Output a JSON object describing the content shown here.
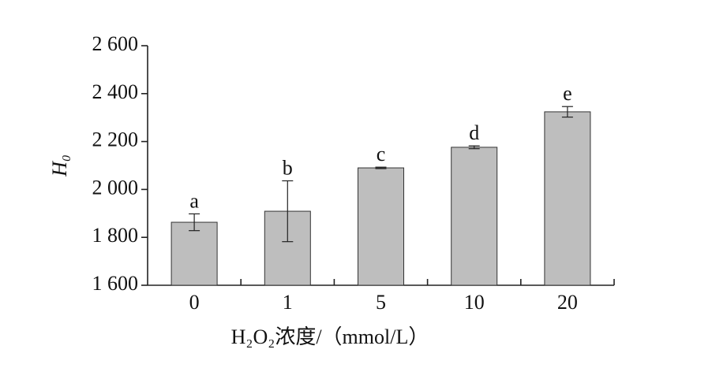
{
  "chart_data": {
    "type": "bar",
    "x_label": "H₂O₂浓度/（mmol/L）",
    "y_label": "H₀",
    "categories": [
      "0",
      "1",
      "5",
      "10",
      "20"
    ],
    "values": [
      1863,
      1909,
      2090,
      2176,
      2324
    ],
    "errors": [
      35,
      127,
      3,
      6,
      22
    ],
    "letters": [
      "a",
      "b",
      "c",
      "d",
      "e"
    ],
    "color": "#bebebe",
    "ylim": [
      1600,
      2600
    ],
    "yticks": [
      {
        "value": 1600,
        "label": "1 600"
      },
      {
        "value": 1800,
        "label": "1 800"
      },
      {
        "value": 2000,
        "label": "2 000"
      },
      {
        "value": 2200,
        "label": "2 200"
      },
      {
        "value": 2400,
        "label": "2 400"
      },
      {
        "value": 2600,
        "label": "2 600"
      }
    ]
  }
}
